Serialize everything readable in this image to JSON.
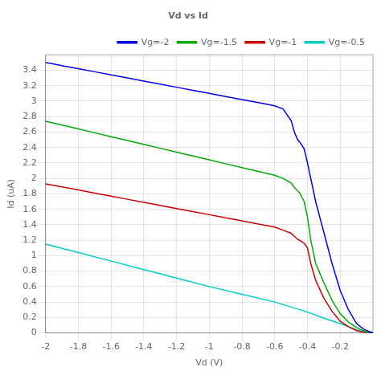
{
  "chart_data": {
    "type": "line",
    "title": "Vd vs Id",
    "xlabel": "Vd (V)",
    "ylabel": "Id (uA)",
    "xlim": [
      -2.0,
      0.0
    ],
    "ylim": [
      0.0,
      3.6
    ],
    "xticks": [
      -2,
      -1.8,
      -1.6,
      -1.4,
      -1.2,
      -1,
      -0.8,
      -0.6,
      -0.4,
      -0.2
    ],
    "yticks": [
      0,
      0.2,
      0.4,
      0.6,
      0.8,
      1,
      1.2,
      1.4,
      1.6,
      1.8,
      2,
      2.2,
      2.4,
      2.6,
      2.8,
      3,
      3.2,
      3.4
    ],
    "grid": true,
    "legend": "upper right",
    "marker": "none",
    "series": [
      {
        "name": "Vg=-2",
        "color": "#0000ee",
        "x": [
          -2.0,
          -1.9,
          -1.8,
          -1.7,
          -1.6,
          -1.5,
          -1.4,
          -1.3,
          -1.2,
          -1.1,
          -1.0,
          -0.9,
          -0.8,
          -0.7,
          -0.6,
          -0.55,
          -0.5,
          -0.48,
          -0.46,
          -0.44,
          -0.42,
          -0.4,
          -0.38,
          -0.35,
          -0.3,
          -0.25,
          -0.2,
          -0.15,
          -0.1,
          -0.05,
          0.0
        ],
        "values": [
          3.5,
          3.46,
          3.42,
          3.38,
          3.34,
          3.3,
          3.26,
          3.22,
          3.18,
          3.14,
          3.1,
          3.06,
          3.02,
          2.98,
          2.94,
          2.9,
          2.75,
          2.6,
          2.5,
          2.45,
          2.38,
          2.2,
          2.0,
          1.7,
          1.3,
          0.9,
          0.55,
          0.3,
          0.12,
          0.04,
          0.0
        ]
      },
      {
        "name": "Vg=-1.5",
        "color": "#00aa00",
        "x": [
          -2.0,
          -1.9,
          -1.8,
          -1.7,
          -1.6,
          -1.5,
          -1.4,
          -1.3,
          -1.2,
          -1.1,
          -1.0,
          -0.9,
          -0.8,
          -0.7,
          -0.6,
          -0.55,
          -0.5,
          -0.48,
          -0.45,
          -0.42,
          -0.4,
          -0.38,
          -0.35,
          -0.3,
          -0.25,
          -0.2,
          -0.15,
          -0.1,
          -0.05,
          0.0
        ],
        "values": [
          2.74,
          2.69,
          2.64,
          2.59,
          2.54,
          2.49,
          2.44,
          2.39,
          2.34,
          2.29,
          2.24,
          2.19,
          2.14,
          2.09,
          2.04,
          2.0,
          1.94,
          1.88,
          1.82,
          1.7,
          1.5,
          1.2,
          0.9,
          0.65,
          0.42,
          0.25,
          0.14,
          0.07,
          0.02,
          0.0
        ]
      },
      {
        "name": "Vg=-1",
        "color": "#cc0000",
        "x": [
          -2.0,
          -1.9,
          -1.8,
          -1.7,
          -1.6,
          -1.5,
          -1.4,
          -1.3,
          -1.2,
          -1.1,
          -1.0,
          -0.9,
          -0.8,
          -0.7,
          -0.6,
          -0.55,
          -0.5,
          -0.48,
          -0.46,
          -0.44,
          -0.42,
          -0.4,
          -0.38,
          -0.35,
          -0.3,
          -0.25,
          -0.2,
          -0.15,
          -0.1,
          -0.05,
          0.0
        ],
        "values": [
          1.93,
          1.89,
          1.85,
          1.81,
          1.77,
          1.73,
          1.69,
          1.65,
          1.61,
          1.57,
          1.53,
          1.49,
          1.45,
          1.41,
          1.37,
          1.33,
          1.29,
          1.25,
          1.21,
          1.19,
          1.16,
          1.1,
          0.9,
          0.68,
          0.45,
          0.28,
          0.15,
          0.08,
          0.03,
          0.01,
          0.0
        ]
      },
      {
        "name": "Vg=-0.5",
        "color": "#00cccc",
        "x": [
          -2.0,
          -1.8,
          -1.6,
          -1.4,
          -1.2,
          -1.0,
          -0.8,
          -0.6,
          -0.4,
          -0.3,
          -0.2,
          -0.15,
          -0.1,
          -0.05,
          0.0
        ],
        "values": [
          1.15,
          1.04,
          0.93,
          0.82,
          0.71,
          0.6,
          0.5,
          0.4,
          0.27,
          0.19,
          0.12,
          0.08,
          0.04,
          0.01,
          0.0
        ]
      }
    ]
  }
}
